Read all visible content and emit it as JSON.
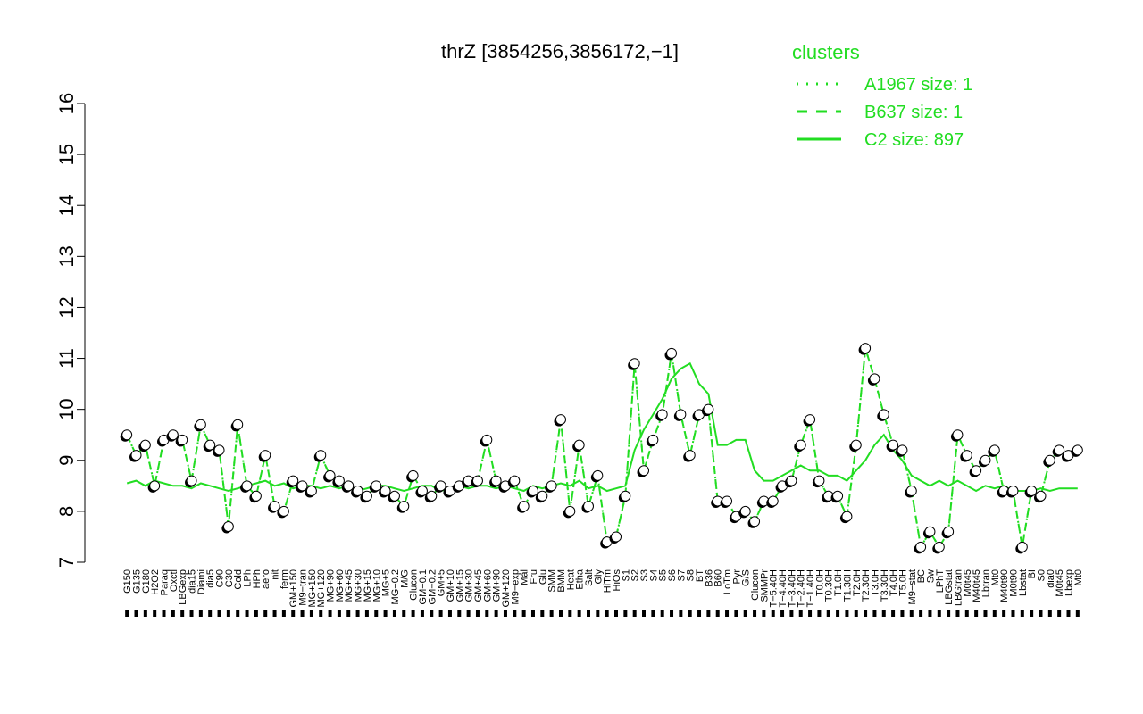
{
  "chart_data": {
    "type": "line",
    "title": "thrZ [3854256,3856172,−1]",
    "xlabel": "",
    "ylabel": "",
    "ylim": [
      7,
      16
    ],
    "yticks": [
      7,
      8,
      9,
      10,
      11,
      12,
      13,
      14,
      15,
      16
    ],
    "grid": false,
    "legend": {
      "placement": "top-right",
      "title": "clusters",
      "entries": [
        {
          "label": "A1967 size: 1",
          "style": "dotted"
        },
        {
          "label": "B637 size: 1",
          "style": "dashed"
        },
        {
          "label": "C2 size: 897",
          "style": "solid"
        }
      ]
    },
    "x_tick_labels": [
      "G150",
      "G135",
      "G180",
      "H2O2",
      "Paraq",
      "Oxctl",
      "LBGexp",
      "dia15",
      "Diami",
      "dia5",
      "C90",
      "C30",
      "Cold",
      "LPh",
      "HPh",
      "aero",
      "nit",
      "ferm",
      "GM+150",
      "M9−tran",
      "MG+150",
      "MG+120",
      "MG+90",
      "MG+60",
      "MG+45",
      "MG+30",
      "MG+15",
      "MG+10",
      "MG+5",
      "MG−0.2",
      "M/G",
      "Glucon",
      "GM−0.1",
      "GM−0.2",
      "GM+5",
      "GM+10",
      "GM+15",
      "GM+30",
      "GM+45",
      "GM+60",
      "GM+90",
      "GM+120",
      "M9−exp",
      "Mal",
      "Fru",
      "Glu",
      "SMM",
      "BMM",
      "Heat",
      "Etha",
      "Salt",
      "Gly",
      "HiTm",
      "HiOs",
      "S1",
      "S2",
      "S3",
      "S4",
      "S5",
      "S6",
      "S7",
      "S8",
      "BT",
      "B36",
      "B60",
      "LoTm",
      "Pyr",
      "G/S",
      "Glucon",
      "SMMPr",
      "T−5.40H",
      "T−4.40H",
      "T−3.40H",
      "T−2.40H",
      "T−1.40H",
      "T0.0H",
      "T0.30H",
      "T1.0H",
      "T1.30H",
      "T2.0H",
      "T2.30H",
      "T3.0H",
      "T3.30H",
      "T4.0H",
      "T5.0H",
      "M9−stat",
      "BC",
      "Sw",
      "LPhT",
      "LBGstat",
      "LBGtran",
      "M0t45",
      "M40t45",
      "Lbtran",
      "Mt0",
      "M40t90",
      "M0t90",
      "Lbstat",
      "BI",
      "S0",
      "dia0",
      "M0t45",
      "Lbexp",
      "Mt0"
    ],
    "series": [
      {
        "name": "C2 size: 897",
        "style": "solid",
        "values": [
          8.55,
          8.6,
          8.5,
          8.6,
          8.55,
          8.5,
          8.5,
          8.45,
          8.55,
          8.5,
          8.45,
          8.4,
          8.45,
          8.5,
          8.55,
          8.6,
          8.5,
          8.55,
          8.45,
          8.5,
          8.5,
          8.45,
          8.5,
          8.45,
          8.5,
          8.4,
          8.45,
          8.5,
          8.5,
          8.45,
          8.4,
          8.45,
          8.5,
          8.5,
          8.4,
          8.45,
          8.5,
          8.45,
          8.5,
          8.5,
          8.45,
          8.5,
          8.45,
          8.4,
          8.5,
          8.45,
          8.5,
          8.55,
          8.5,
          8.6,
          8.45,
          8.5,
          8.4,
          8.45,
          8.5,
          9.2,
          9.6,
          9.9,
          10.2,
          10.6,
          10.8,
          10.9,
          10.5,
          10.3,
          9.3,
          9.3,
          9.4,
          9.4,
          8.8,
          8.6,
          8.6,
          8.7,
          8.8,
          8.9,
          8.8,
          8.8,
          8.7,
          8.7,
          8.6,
          8.8,
          9.0,
          9.3,
          9.5,
          9.2,
          9.0,
          8.7,
          8.6,
          8.5,
          8.6,
          8.5,
          8.6,
          8.5,
          8.4,
          8.5,
          8.45,
          8.5,
          8.4,
          8.4,
          8.4,
          8.45,
          8.4,
          8.45,
          8.45,
          8.45
        ]
      },
      {
        "name": "A1967 size: 1",
        "style": "dotted",
        "values": [
          9.5,
          9.1,
          9.3,
          8.5,
          9.4,
          9.5,
          9.4,
          8.6,
          9.7,
          9.3,
          9.2,
          7.7,
          9.7,
          8.5,
          8.3,
          9.1,
          8.1,
          8.0,
          8.6,
          8.5,
          8.4,
          9.1,
          8.7,
          8.6,
          8.5,
          8.4,
          8.3,
          8.5,
          8.4,
          8.3,
          8.1,
          8.7,
          8.4,
          8.3,
          8.5,
          8.4,
          8.5,
          8.6,
          8.6,
          9.4,
          8.6,
          8.5,
          8.6,
          8.1,
          8.4,
          8.3,
          8.5,
          9.8,
          8.0,
          9.3,
          8.1,
          8.7,
          7.4,
          7.5,
          8.3,
          10.9,
          8.8,
          9.4,
          9.9,
          11.1,
          9.9,
          9.1,
          9.9,
          10.0,
          8.2,
          8.2,
          7.9,
          8.0,
          7.8,
          8.2,
          8.2,
          8.5,
          8.6,
          9.3,
          9.8,
          8.6,
          8.3,
          8.3,
          7.9,
          9.3,
          11.2,
          10.6,
          9.9,
          9.3,
          9.2,
          8.4,
          7.3,
          7.6,
          7.3,
          7.6,
          9.5,
          9.1,
          8.8,
          9.0,
          9.2,
          8.4,
          8.4,
          7.3,
          8.4,
          8.3,
          9.0,
          9.2,
          9.1,
          9.2
        ]
      },
      {
        "name": "B637 size: 1",
        "style": "dashed",
        "values": [
          9.5,
          9.1,
          9.3,
          8.5,
          9.4,
          9.5,
          9.4,
          8.6,
          9.7,
          9.3,
          9.2,
          7.7,
          9.7,
          8.5,
          8.3,
          9.1,
          8.1,
          8.0,
          8.6,
          8.5,
          8.4,
          9.1,
          8.7,
          8.6,
          8.5,
          8.4,
          8.3,
          8.5,
          8.4,
          8.3,
          8.1,
          8.7,
          8.4,
          8.3,
          8.5,
          8.4,
          8.5,
          8.6,
          8.6,
          9.4,
          8.6,
          8.5,
          8.6,
          8.1,
          8.4,
          8.3,
          8.5,
          9.8,
          8.0,
          9.3,
          8.1,
          8.7,
          7.4,
          7.5,
          8.3,
          10.9,
          8.8,
          9.4,
          9.9,
          11.1,
          9.9,
          9.1,
          9.9,
          10.0,
          8.2,
          8.2,
          7.9,
          8.0,
          7.8,
          8.2,
          8.2,
          8.5,
          8.6,
          9.3,
          9.8,
          8.6,
          8.3,
          8.3,
          7.9,
          9.3,
          11.2,
          10.6,
          9.9,
          9.3,
          9.2,
          8.4,
          7.3,
          7.6,
          7.3,
          7.6,
          9.5,
          9.1,
          8.8,
          9.0,
          9.2,
          8.4,
          8.4,
          7.3,
          8.4,
          8.3,
          9.0,
          9.2,
          9.1,
          9.2
        ]
      }
    ],
    "colors": {
      "line": "#22dd22",
      "points": "#000000",
      "legend": "#22dd22"
    }
  }
}
